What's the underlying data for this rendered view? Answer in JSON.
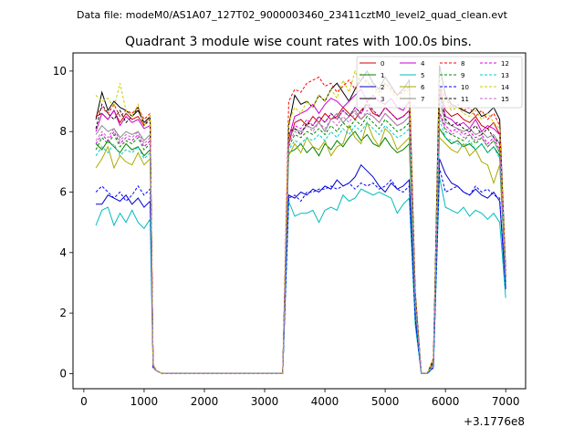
{
  "chart_data": {
    "type": "line",
    "suptitle": "Data file: modeM0/AS1A07_127T02_9000003460_23411cztM0_level2_quad_clean.evt",
    "title": "Quadrant 3 module wise count rates with 100.0s bins.",
    "xlabel": "",
    "ylabel": "",
    "offset_label": "+3.1776e8",
    "xlim": [
      -180,
      7330
    ],
    "ylim": [
      -0.5,
      10.6
    ],
    "xticks": [
      "0",
      "1000",
      "2000",
      "3000",
      "4000",
      "5000",
      "6000",
      "7000"
    ],
    "xtick_values": [
      0,
      1000,
      2000,
      3000,
      4000,
      5000,
      6000,
      7000
    ],
    "yticks": [
      "0",
      "2",
      "4",
      "6",
      "8",
      "10"
    ],
    "ytick_values": [
      0,
      2,
      4,
      6,
      8,
      10
    ],
    "legend_location": "upper right",
    "x": [
      200,
      300,
      400,
      500,
      600,
      700,
      800,
      900,
      1000,
      1100,
      1150,
      1200,
      1300,
      1400,
      1500,
      1600,
      1700,
      1800,
      1900,
      2000,
      2100,
      2200,
      2300,
      2400,
      2500,
      2600,
      2700,
      2800,
      2900,
      3000,
      3100,
      3200,
      3300,
      3400,
      3500,
      3600,
      3700,
      3800,
      3900,
      4000,
      4100,
      4200,
      4300,
      4400,
      4500,
      4600,
      4700,
      4800,
      4900,
      5000,
      5100,
      5200,
      5300,
      5400,
      5500,
      5600,
      5700,
      5800,
      5900,
      6000,
      6100,
      6200,
      6300,
      6400,
      6500,
      6600,
      6700,
      6800,
      6900,
      7000
    ],
    "series": [
      {
        "name": "0",
        "color": "#cc0000",
        "dashed": false,
        "values": [
          8.5,
          8.6,
          8.4,
          8.7,
          8.3,
          8.6,
          8.4,
          8.5,
          8.2,
          8.5,
          0.3,
          0.1,
          0,
          0,
          0,
          0,
          0,
          0,
          0,
          0,
          0,
          0,
          0,
          0,
          0,
          0,
          0,
          0,
          0,
          0,
          0,
          0,
          0,
          7.6,
          8.3,
          8.4,
          8.2,
          8.5,
          8.3,
          8.6,
          8.4,
          8.5,
          8.8,
          8.6,
          8.4,
          8.7,
          8.9,
          8.6,
          8.5,
          8.8,
          8.6,
          8.4,
          8.5,
          8.7,
          2.5,
          0,
          0,
          0.3,
          9.5,
          8.7,
          8.5,
          8.6,
          8.4,
          8.3,
          8.5,
          8.2,
          8.1,
          8.3,
          7.9,
          3.2
        ]
      },
      {
        "name": "1",
        "color": "#008000",
        "dashed": false,
        "values": [
          7.6,
          7.4,
          7.7,
          7.5,
          7.3,
          7.6,
          7.4,
          7.5,
          7.2,
          7.4,
          0.3,
          0.1,
          0,
          0,
          0,
          0,
          0,
          0,
          0,
          0,
          0,
          0,
          0,
          0,
          0,
          0,
          0,
          0,
          0,
          0,
          0,
          0,
          0,
          7.3,
          7.4,
          7.6,
          7.3,
          7.5,
          7.2,
          7.6,
          7.4,
          7.7,
          7.5,
          7.8,
          8.0,
          7.7,
          7.9,
          7.6,
          7.5,
          7.8,
          7.5,
          7.3,
          7.4,
          7.6,
          2.2,
          0,
          0,
          0.3,
          8.1,
          7.8,
          7.6,
          7.7,
          7.5,
          7.6,
          7.4,
          7.6,
          7.3,
          7.5,
          7.2,
          3.0
        ]
      },
      {
        "name": "2",
        "color": "#0000cc",
        "dashed": false,
        "values": [
          5.6,
          5.6,
          5.9,
          5.8,
          5.7,
          5.9,
          5.6,
          5.8,
          5.5,
          5.7,
          0.2,
          0.1,
          0,
          0,
          0,
          0,
          0,
          0,
          0,
          0,
          0,
          0,
          0,
          0,
          0,
          0,
          0,
          0,
          0,
          0,
          0,
          0,
          0,
          5.9,
          5.8,
          6.0,
          5.9,
          6.1,
          6.0,
          6.2,
          6.1,
          6.4,
          6.2,
          6.3,
          6.5,
          6.9,
          6.7,
          6.5,
          6.2,
          6.0,
          6.3,
          6.1,
          6.2,
          6.4,
          1.8,
          0,
          0,
          0.2,
          7.1,
          6.6,
          6.3,
          6.2,
          6.0,
          5.9,
          6.1,
          5.9,
          5.8,
          6.0,
          5.7,
          2.8
        ]
      },
      {
        "name": "3",
        "color": "#000000",
        "dashed": false,
        "values": [
          8.4,
          9.3,
          8.7,
          9.0,
          8.8,
          8.7,
          8.5,
          8.7,
          8.3,
          8.5,
          0.3,
          0.1,
          0,
          0,
          0,
          0,
          0,
          0,
          0,
          0,
          0,
          0,
          0,
          0,
          0,
          0,
          0,
          0,
          0,
          0,
          0,
          0,
          0,
          8.2,
          9.2,
          8.9,
          9.0,
          8.8,
          9.2,
          9.0,
          9.4,
          9.6,
          9.3,
          9.0,
          9.4,
          9.7,
          10.0,
          9.6,
          9.4,
          9.8,
          9.5,
          9.2,
          9.4,
          9.7,
          2.7,
          0,
          0,
          0.5,
          10.2,
          9.2,
          8.9,
          8.8,
          8.7,
          8.6,
          8.8,
          8.5,
          8.6,
          8.8,
          8.4,
          3.4
        ]
      },
      {
        "name": "4",
        "color": "#cc00cc",
        "dashed": false,
        "values": [
          8.0,
          8.6,
          8.4,
          8.7,
          8.2,
          8.5,
          8.3,
          8.4,
          8.1,
          8.2,
          0.3,
          0.1,
          0,
          0,
          0,
          0,
          0,
          0,
          0,
          0,
          0,
          0,
          0,
          0,
          0,
          0,
          0,
          0,
          0,
          0,
          0,
          0,
          0,
          7.8,
          8.5,
          8.6,
          8.7,
          8.9,
          8.6,
          8.9,
          9.1,
          9.0,
          8.8,
          9.0,
          9.2,
          9.4,
          9.0,
          9.2,
          9.0,
          8.9,
          9.1,
          8.8,
          8.7,
          9.0,
          2.4,
          0,
          0,
          0.3,
          9.3,
          8.5,
          8.4,
          8.2,
          8.3,
          8.1,
          8.4,
          8.0,
          8.2,
          8.1,
          7.9,
          3.2
        ]
      },
      {
        "name": "5",
        "color": "#00bbbb",
        "dashed": false,
        "values": [
          4.9,
          5.4,
          5.5,
          4.9,
          5.3,
          5.0,
          5.4,
          5.0,
          4.8,
          5.1,
          0.2,
          0.1,
          0,
          0,
          0,
          0,
          0,
          0,
          0,
          0,
          0,
          0,
          0,
          0,
          0,
          0,
          0,
          0,
          0,
          0,
          0,
          0,
          0,
          5.7,
          5.2,
          5.3,
          5.3,
          5.4,
          5.0,
          5.4,
          5.5,
          5.4,
          5.9,
          5.7,
          5.8,
          6.1,
          6.0,
          5.9,
          6.0,
          5.9,
          5.8,
          5.3,
          5.6,
          5.8,
          1.6,
          0,
          0,
          0.2,
          6.5,
          5.5,
          5.4,
          5.3,
          5.5,
          5.2,
          5.4,
          5.3,
          5.1,
          5.3,
          5.0,
          2.5
        ]
      },
      {
        "name": "6",
        "color": "#aaaa00",
        "dashed": false,
        "values": [
          6.8,
          7.1,
          7.5,
          6.8,
          7.2,
          7.0,
          6.9,
          7.3,
          6.9,
          7.1,
          0.2,
          0.1,
          0,
          0,
          0,
          0,
          0,
          0,
          0,
          0,
          0,
          0,
          0,
          0,
          0,
          0,
          0,
          0,
          0,
          0,
          0,
          0,
          0,
          7.2,
          7.6,
          7.3,
          7.8,
          7.5,
          7.4,
          7.7,
          7.2,
          7.5,
          7.6,
          8.2,
          7.8,
          7.6,
          8.3,
          7.8,
          7.5,
          8.1,
          7.9,
          7.4,
          7.6,
          7.8,
          2.2,
          0,
          0,
          0.3,
          7.8,
          7.6,
          7.4,
          7.3,
          7.6,
          7.2,
          7.4,
          7.0,
          6.9,
          6.3,
          6.9,
          3.0
        ]
      },
      {
        "name": "7",
        "color": "#888888",
        "dashed": false,
        "values": [
          7.9,
          8.2,
          8.0,
          8.1,
          7.8,
          8.0,
          7.9,
          8.0,
          7.7,
          7.9,
          0.3,
          0.1,
          0,
          0,
          0,
          0,
          0,
          0,
          0,
          0,
          0,
          0,
          0,
          0,
          0,
          0,
          0,
          0,
          0,
          0,
          0,
          0,
          0,
          7.8,
          8.1,
          8.0,
          8.2,
          8.1,
          8.3,
          8.0,
          8.4,
          8.6,
          8.3,
          8.5,
          8.7,
          8.4,
          8.6,
          8.5,
          8.3,
          8.6,
          8.4,
          8.2,
          8.3,
          8.5,
          2.4,
          0,
          0,
          0.4,
          9.0,
          8.3,
          8.2,
          8.1,
          8.0,
          8.1,
          7.9,
          8.0,
          7.8,
          7.9,
          7.6,
          3.1
        ]
      },
      {
        "name": "8",
        "color": "#ff0000",
        "dashed": true,
        "values": [
          8.5,
          8.8,
          8.6,
          8.9,
          8.5,
          8.7,
          8.6,
          8.8,
          8.4,
          8.6,
          0.3,
          0.1,
          0,
          0,
          0,
          0,
          0,
          0,
          0,
          0,
          0,
          0,
          0,
          0,
          0,
          0,
          0,
          0,
          0,
          0,
          0,
          0,
          0,
          9.0,
          9.4,
          9.3,
          9.6,
          9.7,
          9.8,
          9.5,
          9.6,
          9.3,
          9.5,
          9.7,
          9.4,
          9.9,
          9.6,
          9.5,
          9.3,
          9.6,
          9.4,
          9.2,
          9.3,
          9.5,
          2.6,
          0,
          0,
          0.5,
          9.5,
          9.1,
          8.8,
          8.9,
          8.7,
          8.8,
          8.5,
          8.7,
          8.4,
          8.6,
          8.2,
          3.3
        ]
      },
      {
        "name": "9",
        "color": "#008800",
        "dashed": true,
        "values": [
          7.4,
          7.8,
          7.6,
          7.9,
          7.5,
          7.7,
          7.6,
          7.8,
          7.4,
          7.6,
          0.3,
          0.1,
          0,
          0,
          0,
          0,
          0,
          0,
          0,
          0,
          0,
          0,
          0,
          0,
          0,
          0,
          0,
          0,
          0,
          0,
          0,
          0,
          0,
          7.5,
          7.9,
          7.8,
          8.0,
          7.9,
          8.1,
          7.9,
          8.2,
          8.0,
          8.3,
          8.1,
          8.4,
          8.2,
          8.5,
          8.3,
          8.1,
          8.4,
          8.2,
          8.0,
          8.1,
          8.3,
          2.3,
          0,
          0,
          0.3,
          8.7,
          8.0,
          7.9,
          7.8,
          7.7,
          7.9,
          7.6,
          7.8,
          7.5,
          7.7,
          7.3,
          3.0
        ]
      },
      {
        "name": "10",
        "color": "#0000ff",
        "dashed": true,
        "values": [
          6.0,
          6.2,
          6.0,
          5.8,
          6.0,
          5.7,
          5.9,
          6.2,
          5.9,
          6.1,
          0.2,
          0.1,
          0,
          0,
          0,
          0,
          0,
          0,
          0,
          0,
          0,
          0,
          0,
          0,
          0,
          0,
          0,
          0,
          0,
          0,
          0,
          0,
          0,
          5.8,
          5.9,
          5.7,
          6.0,
          6.0,
          6.1,
          6.1,
          6.2,
          6.1,
          6.2,
          6.3,
          6.1,
          6.3,
          6.2,
          6.3,
          6.1,
          6.2,
          6.4,
          6.1,
          6.0,
          6.2,
          1.8,
          0,
          0,
          0.2,
          6.8,
          6.0,
          6.1,
          6.2,
          6.0,
          5.9,
          6.2,
          6.0,
          6.1,
          5.9,
          5.8,
          2.8
        ]
      },
      {
        "name": "11",
        "color": "#111111",
        "dashed": true,
        "values": [
          8.1,
          8.9,
          8.6,
          8.4,
          8.7,
          8.3,
          8.5,
          8.8,
          8.2,
          8.4,
          0.3,
          0.1,
          0,
          0,
          0,
          0,
          0,
          0,
          0,
          0,
          0,
          0,
          0,
          0,
          0,
          0,
          0,
          0,
          0,
          0,
          0,
          0,
          0,
          8.0,
          8.1,
          7.9,
          8.3,
          8.2,
          8.5,
          8.3,
          8.6,
          8.4,
          8.7,
          8.5,
          8.8,
          8.6,
          9.0,
          8.7,
          8.5,
          8.8,
          8.6,
          8.4,
          8.5,
          8.7,
          2.5,
          0,
          0,
          0.4,
          9.3,
          8.4,
          8.2,
          8.3,
          8.1,
          8.0,
          8.2,
          7.9,
          8.1,
          7.8,
          7.6,
          3.2
        ]
      },
      {
        "name": "12",
        "color": "#dd00dd",
        "dashed": true,
        "values": [
          7.6,
          7.9,
          7.7,
          8.0,
          7.6,
          7.8,
          7.7,
          7.9,
          7.5,
          7.7,
          0.3,
          0.1,
          0,
          0,
          0,
          0,
          0,
          0,
          0,
          0,
          0,
          0,
          0,
          0,
          0,
          0,
          0,
          0,
          0,
          0,
          0,
          0,
          0,
          7.8,
          8.2,
          8.1,
          8.4,
          8.2,
          8.5,
          8.3,
          8.6,
          8.4,
          8.7,
          8.5,
          8.8,
          8.6,
          8.9,
          8.7,
          8.5,
          8.8,
          8.6,
          8.4,
          8.5,
          8.7,
          2.4,
          0,
          0,
          0.3,
          8.6,
          8.2,
          8.0,
          8.1,
          7.9,
          8.0,
          7.8,
          7.9,
          7.6,
          7.8,
          7.4,
          3.1
        ]
      },
      {
        "name": "13",
        "color": "#00cccc",
        "dashed": true,
        "values": [
          7.2,
          7.5,
          7.3,
          7.6,
          7.2,
          7.4,
          7.3,
          7.5,
          7.1,
          7.3,
          0.3,
          0.1,
          0,
          0,
          0,
          0,
          0,
          0,
          0,
          0,
          0,
          0,
          0,
          0,
          0,
          0,
          0,
          0,
          0,
          0,
          0,
          0,
          0,
          7.4,
          7.7,
          7.6,
          7.8,
          7.7,
          7.9,
          7.7,
          8.0,
          7.8,
          8.1,
          7.9,
          8.2,
          8.0,
          8.3,
          8.1,
          7.9,
          8.2,
          8.0,
          7.8,
          7.9,
          8.1,
          2.3,
          0,
          0,
          0.3,
          8.4,
          7.8,
          7.7,
          7.6,
          7.5,
          7.7,
          7.4,
          7.6,
          7.3,
          7.5,
          7.1,
          3.0
        ]
      },
      {
        "name": "14",
        "color": "#cccc00",
        "dashed": true,
        "values": [
          9.2,
          9.0,
          9.1,
          8.8,
          9.6,
          8.7,
          8.5,
          8.9,
          8.2,
          8.5,
          0.3,
          0.1,
          0,
          0,
          0,
          0,
          0,
          0,
          0,
          0,
          0,
          0,
          0,
          0,
          0,
          0,
          0,
          0,
          0,
          0,
          0,
          0,
          0,
          8.3,
          8.8,
          8.6,
          9.0,
          8.8,
          9.2,
          9.0,
          9.4,
          9.1,
          9.7,
          9.3,
          10.0,
          9.5,
          9.7,
          9.4,
          9.2,
          9.5,
          9.3,
          9.1,
          9.2,
          9.4,
          2.6,
          0,
          0,
          0.5,
          9.8,
          9.0,
          8.7,
          8.8,
          8.6,
          8.5,
          8.7,
          8.4,
          8.6,
          8.3,
          8.1,
          3.3
        ]
      },
      {
        "name": "15",
        "color": "#cc66cc",
        "dashed": true,
        "values": [
          7.7,
          8.0,
          7.8,
          8.1,
          7.7,
          7.9,
          7.8,
          8.0,
          7.6,
          7.8,
          0.3,
          0.1,
          0,
          0,
          0,
          0,
          0,
          0,
          0,
          0,
          0,
          0,
          0,
          0,
          0,
          0,
          0,
          0,
          0,
          0,
          0,
          0,
          0,
          7.6,
          8.0,
          7.9,
          8.2,
          8.0,
          8.3,
          8.1,
          8.4,
          8.2,
          8.5,
          8.3,
          8.6,
          8.4,
          8.7,
          8.5,
          8.3,
          8.6,
          8.4,
          8.2,
          8.3,
          8.5,
          2.4,
          0,
          0,
          0.3,
          8.5,
          8.1,
          7.9,
          8.0,
          7.8,
          7.9,
          7.7,
          7.8,
          7.5,
          7.7,
          7.3,
          3.1
        ]
      }
    ]
  }
}
